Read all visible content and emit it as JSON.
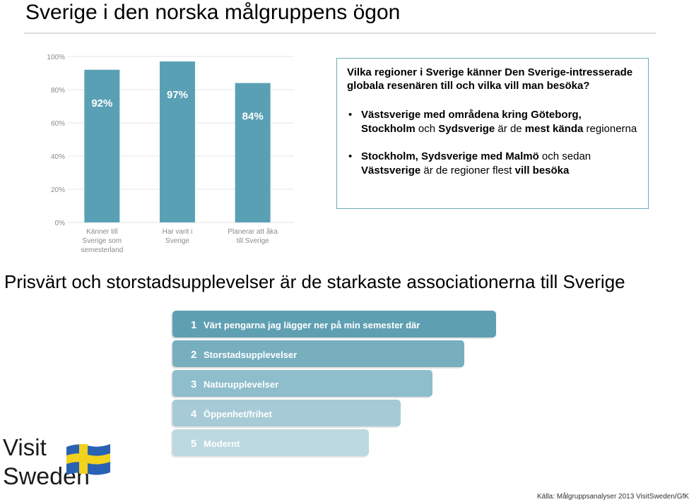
{
  "slide": {
    "title": "Sverige i den norska målgruppens ögon",
    "subtitle": "Prisvärt och storstadsupplevelser är de starkaste associationerna till Sverige",
    "source": "Källa: Målgruppsanalyser 2013 VisitSweden/GfK"
  },
  "infobox": {
    "question": "Vilka regioner i Sverige känner Den Sverige-intresserade globala resenären till och vilka vill man besöka?",
    "bullet_symbol": "•",
    "bullet1": {
      "b1": "Västsverige med områdena kring Göteborg,",
      "b2": "Stockholm",
      "t1": " och ",
      "b3": "Sydsverige",
      "t2": " är de ",
      "b4": "mest kända",
      "t3": " regionerna"
    },
    "bullet2": {
      "b1": "Stockholm, Sydsverige med Malmö",
      "t1": " och sedan ",
      "b2": "Västsverige",
      "t2": " är de regioner flest ",
      "b3": "vill besöka"
    }
  },
  "logo": {
    "word1": "Visit",
    "word2": "Sweden"
  },
  "chart_data": [
    {
      "type": "bar",
      "categories": [
        "Känner till Sverige som semesterland",
        "Har varit i Sverige",
        "Planerar att åka till Sverige"
      ],
      "category_lines": [
        [
          "Känner till",
          "Sverige som",
          "semesterland"
        ],
        [
          "Har varit i",
          "Sverige"
        ],
        [
          "Planerar att åka",
          "till Sverige"
        ]
      ],
      "values": [
        92,
        97,
        84
      ],
      "value_labels": [
        "92%",
        "97%",
        "84%"
      ],
      "ylim": [
        0,
        100
      ],
      "yticks": [
        0,
        20,
        40,
        60,
        80,
        100
      ],
      "ytick_labels": [
        "0%",
        "20%",
        "40%",
        "60%",
        "80%",
        "100%"
      ],
      "grid": true,
      "color": "#5aa0b5"
    },
    {
      "type": "bar",
      "orientation": "horizontal",
      "categories": [
        "Värt pengarna jag lägger ner på min semester där",
        "Storstadsupplevelser",
        "Naturupplevelser",
        "Öppenhet/frihet",
        "Modernt"
      ],
      "ranks": [
        "1",
        "2",
        "3",
        "4",
        "5"
      ],
      "colors": [
        "#5f9fb2",
        "#78afbf",
        "#8ebdcb",
        "#a7cbd6",
        "#bcd8e0"
      ]
    }
  ]
}
